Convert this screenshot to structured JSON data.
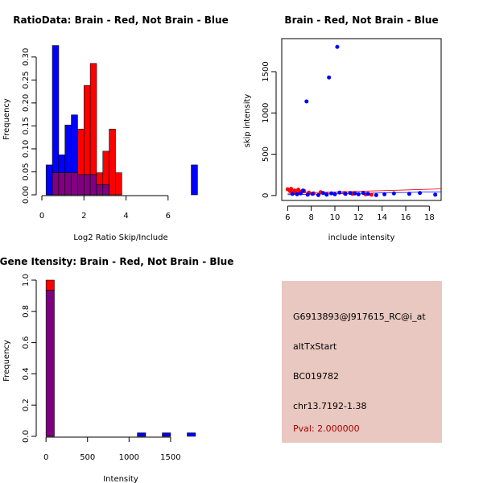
{
  "chart_data": [
    {
      "type": "histogram",
      "title": "RatioData: Brain - Red, Not Brain - Blue",
      "xlabel": "Log2 Ratio Skip/Include",
      "ylabel": "Frequency",
      "xlim": [
        0,
        7.5
      ],
      "ylim": [
        0,
        0.34
      ],
      "xticks": [
        0,
        2,
        4,
        6
      ],
      "yticks": [
        0.0,
        0.05,
        0.1,
        0.15,
        0.2,
        0.25,
        0.3
      ],
      "bin_width": 0.3,
      "bin_starts": [
        0.2,
        0.5,
        0.8,
        1.1,
        1.4,
        1.7,
        2.0,
        2.3,
        2.6,
        2.9,
        3.2,
        3.5,
        3.8,
        7.1
      ],
      "series": [
        {
          "name": "Not Brain",
          "color": "#0000ff",
          "values": [
            0.065,
            0.325,
            0.087,
            0.152,
            0.174,
            0.044,
            0.044,
            0.044,
            0.022,
            0.022,
            0,
            0,
            0,
            0.065
          ]
        },
        {
          "name": "Brain",
          "color": "#ff0000",
          "values": [
            0,
            0.048,
            0.048,
            0.048,
            0.048,
            0.143,
            0.238,
            0.286,
            0.048,
            0.095,
            0.143,
            0.048,
            0,
            0
          ]
        }
      ],
      "overlap_color": "#800080"
    },
    {
      "type": "scatter",
      "title": "Brain - Red, Not Brain - Blue",
      "xlabel": "include intensity",
      "ylabel": "skip intensity",
      "xlim": [
        5.5,
        19
      ],
      "ylim": [
        -60,
        1900
      ],
      "xticks": [
        6,
        8,
        10,
        12,
        14,
        16,
        18
      ],
      "yticks": [
        0,
        500,
        1000,
        1500
      ],
      "series": [
        {
          "name": "Brain",
          "color": "#ff0000",
          "points": [
            [
              6.0,
              75
            ],
            [
              6.2,
              55
            ],
            [
              6.3,
              80
            ],
            [
              6.5,
              40
            ],
            [
              6.6,
              60
            ],
            [
              6.7,
              30
            ],
            [
              6.9,
              70
            ],
            [
              7.0,
              50
            ],
            [
              7.2,
              45
            ],
            [
              7.4,
              55
            ],
            [
              7.8,
              35
            ],
            [
              8.2,
              25
            ],
            [
              8.8,
              40
            ],
            [
              9.3,
              20
            ],
            [
              10.8,
              30
            ],
            [
              11.5,
              20
            ],
            [
              12.6,
              15
            ],
            [
              13.1,
              10
            ]
          ]
        },
        {
          "name": "Not Brain",
          "color": "#0000ff",
          "points": [
            [
              7.6,
              1140
            ],
            [
              9.5,
              1430
            ],
            [
              10.2,
              1800
            ],
            [
              6.4,
              20
            ],
            [
              6.8,
              15
            ],
            [
              7.1,
              25
            ],
            [
              7.3,
              60
            ],
            [
              7.7,
              10
            ],
            [
              8.1,
              20
            ],
            [
              8.6,
              5
            ],
            [
              9.0,
              30
            ],
            [
              9.3,
              10
            ],
            [
              9.7,
              25
            ],
            [
              10.0,
              15
            ],
            [
              10.4,
              35
            ],
            [
              10.9,
              20
            ],
            [
              11.3,
              30
            ],
            [
              11.7,
              25
            ],
            [
              12.0,
              15
            ],
            [
              12.4,
              30
            ],
            [
              12.8,
              20
            ],
            [
              13.5,
              5
            ],
            [
              14.2,
              15
            ],
            [
              15.0,
              25
            ],
            [
              16.3,
              20
            ],
            [
              17.2,
              30
            ],
            [
              18.5,
              10
            ]
          ]
        }
      ],
      "regression_lines": [
        {
          "color": "#ff0000",
          "from": [
            6,
            25
          ],
          "to": [
            19,
            80
          ]
        },
        {
          "color": "#0000ff",
          "from": [
            6,
            10
          ],
          "to": [
            19,
            45
          ]
        }
      ]
    },
    {
      "type": "histogram",
      "title": "Gene Itensity: Brain - Red, Not Brain - Blue",
      "xlabel": "Intensity",
      "ylabel": "Frequency",
      "xlim": [
        -50,
        1850
      ],
      "ylim": [
        0,
        1.0
      ],
      "xticks": [
        0,
        500,
        1000,
        1500
      ],
      "yticks": [
        0.0,
        0.2,
        0.4,
        0.6,
        0.8,
        1.0
      ],
      "bin_width": 100,
      "bin_starts": [
        0,
        1100,
        1400,
        1700
      ],
      "series": [
        {
          "name": "Brain",
          "color": "#ff0000",
          "values": [
            1.0,
            0,
            0,
            0
          ]
        },
        {
          "name": "Not Brain",
          "color": "#0000ff",
          "values": [
            0.935,
            0.022,
            0.022,
            0.022
          ]
        }
      ],
      "overlap_color": "#800080"
    }
  ],
  "info_panel": {
    "background": "#e8c8c0",
    "probe_id": "G6913893@J917615_RC@i_at",
    "event_type": "altTxStart",
    "accession": "BC019782",
    "location": "chr13.7192-1.38",
    "pval": "Pval: 2.000000",
    "pval_color": "#aa0000"
  }
}
